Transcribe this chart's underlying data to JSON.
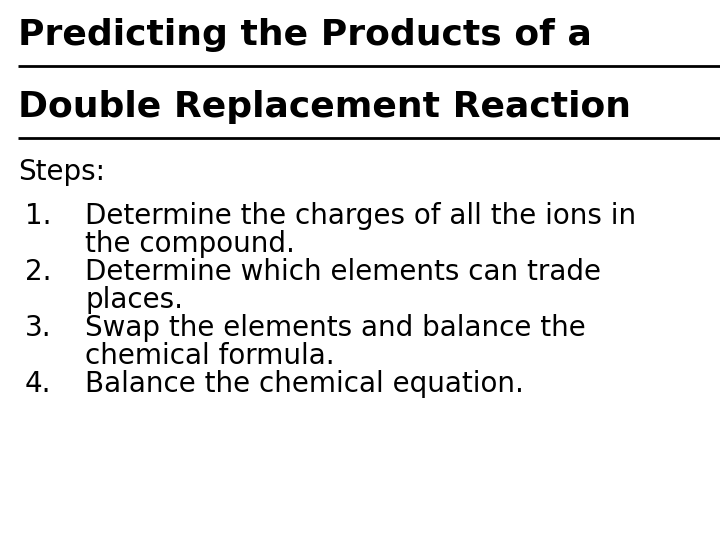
{
  "background_color": "#ffffff",
  "title_line1": "Predicting the Products of a",
  "title_line2": "Double Replacement Reaction",
  "title_colon": ":",
  "title_fontsize": 26,
  "steps_label": "Steps:",
  "steps_fontsize": 20,
  "items": [
    {
      "number": "1.",
      "line1": "Determine the charges of all the ions in",
      "line2": "the compound."
    },
    {
      "number": "2.",
      "line1": "Determine which elements can trade",
      "line2": "places."
    },
    {
      "number": "3.",
      "line1": "Swap the elements and balance the",
      "line2": "chemical formula."
    },
    {
      "number": "4.",
      "line1": "Balance the chemical equation.",
      "line2": null
    }
  ],
  "item_fontsize": 20,
  "text_color": "#000000",
  "fig_width": 7.2,
  "fig_height": 5.4,
  "dpi": 100
}
